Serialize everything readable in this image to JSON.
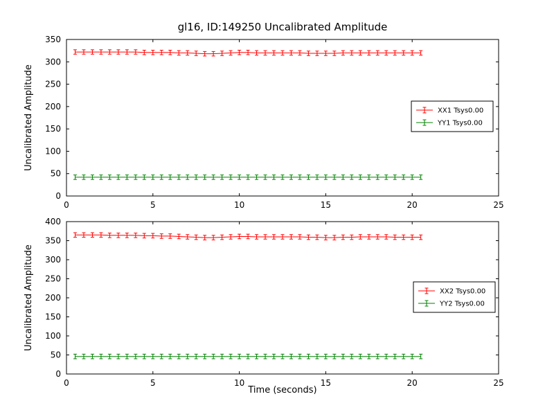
{
  "figure": {
    "background": "#ffffff"
  },
  "chart_data": [
    {
      "type": "line",
      "title": "gl16, ID:149250 Uncalibrated Amplitude",
      "xlabel": "",
      "ylabel": "Uncalibrated Amplitude",
      "xlim": [
        0,
        25
      ],
      "ylim": [
        0,
        350
      ],
      "xticks": [
        0,
        5,
        10,
        15,
        20,
        25
      ],
      "yticks": [
        0,
        50,
        100,
        150,
        200,
        250,
        300,
        350
      ],
      "grid": false,
      "legend_position": "center-right",
      "x": [
        0.5,
        1,
        1.5,
        2,
        2.5,
        3,
        3.5,
        4,
        4.5,
        5,
        5.5,
        6,
        6.5,
        7,
        7.5,
        8,
        8.5,
        9,
        9.5,
        10,
        10.5,
        11,
        11.5,
        12,
        12.5,
        13,
        13.5,
        14,
        14.5,
        15,
        15.5,
        16,
        16.5,
        17,
        17.5,
        18,
        18.5,
        19,
        19.5,
        20,
        20.5
      ],
      "series": [
        {
          "name": "XX1 Tsys0.00",
          "color": "#ff0000",
          "marker": "errorbar",
          "yerr": 5,
          "values": [
            322,
            322,
            322,
            322,
            322,
            322,
            322,
            322,
            321,
            321,
            321,
            321,
            320,
            320,
            319,
            318,
            318,
            319,
            320,
            321,
            321,
            320,
            320,
            320,
            320,
            320,
            320,
            319,
            319,
            319,
            319,
            320,
            320,
            320,
            320,
            320,
            320,
            320,
            320,
            320,
            320
          ]
        },
        {
          "name": "YY1 Tsys0.00",
          "color": "#008000",
          "marker": "errorbar",
          "yerr": 5,
          "values": [
            42,
            42,
            42,
            42,
            42,
            42,
            42,
            42,
            42,
            42,
            42,
            42,
            42,
            42,
            42,
            42,
            42,
            42,
            42,
            42,
            42,
            42,
            42,
            42,
            42,
            42,
            42,
            42,
            42,
            42,
            42,
            42,
            42,
            42,
            42,
            42,
            42,
            42,
            42,
            42,
            42
          ]
        }
      ]
    },
    {
      "type": "line",
      "title": "",
      "xlabel": "Time (seconds)",
      "ylabel": "Uncalibrated Amplitude",
      "xlim": [
        0,
        25
      ],
      "ylim": [
        0,
        400
      ],
      "xticks": [
        0,
        5,
        10,
        15,
        20,
        25
      ],
      "yticks": [
        0,
        50,
        100,
        150,
        200,
        250,
        300,
        350,
        400
      ],
      "grid": false,
      "legend_position": "center-right",
      "x": [
        0.5,
        1,
        1.5,
        2,
        2.5,
        3,
        3.5,
        4,
        4.5,
        5,
        5.5,
        6,
        6.5,
        7,
        7.5,
        8,
        8.5,
        9,
        9.5,
        10,
        10.5,
        11,
        11.5,
        12,
        12.5,
        13,
        13.5,
        14,
        14.5,
        15,
        15.5,
        16,
        16.5,
        17,
        17.5,
        18,
        18.5,
        19,
        19.5,
        20,
        20.5
      ],
      "series": [
        {
          "name": "XX2 Tsys0.00",
          "color": "#ff0000",
          "marker": "errorbar",
          "yerr": 6,
          "values": [
            365,
            365,
            365,
            365,
            364,
            364,
            364,
            364,
            363,
            363,
            362,
            362,
            361,
            360,
            359,
            358,
            358,
            359,
            360,
            361,
            361,
            360,
            360,
            360,
            360,
            360,
            360,
            359,
            359,
            358,
            358,
            359,
            359,
            360,
            360,
            360,
            360,
            359,
            359,
            359,
            359
          ]
        },
        {
          "name": "YY2 Tsys0.00",
          "color": "#008000",
          "marker": "errorbar",
          "yerr": 6,
          "values": [
            46,
            46,
            46,
            46,
            46,
            46,
            46,
            46,
            46,
            46,
            46,
            46,
            46,
            46,
            46,
            46,
            46,
            46,
            46,
            46,
            46,
            46,
            46,
            46,
            46,
            46,
            46,
            46,
            46,
            46,
            46,
            46,
            46,
            46,
            46,
            46,
            46,
            46,
            46,
            46,
            46
          ]
        }
      ]
    }
  ]
}
